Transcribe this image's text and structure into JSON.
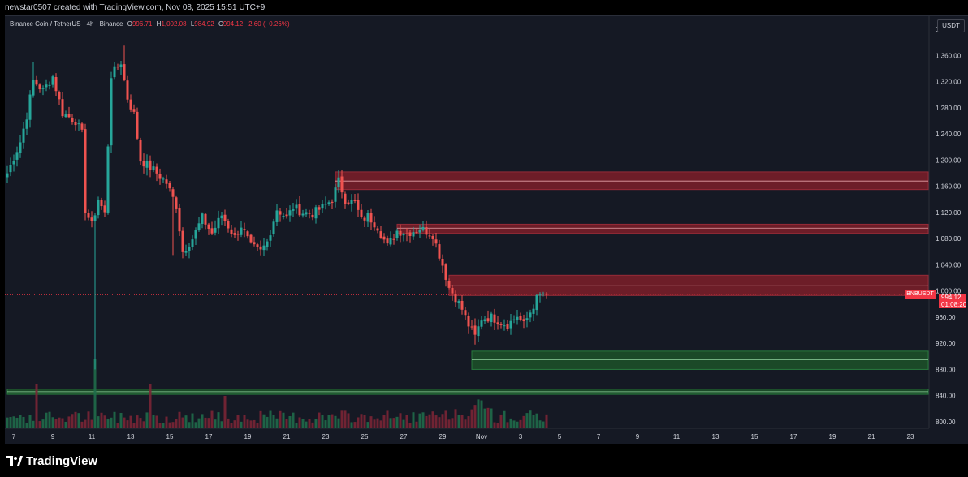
{
  "header": {
    "caption": "newstar0507 created with TradingView.com, Nov 08, 2025 15:51 UTC+9"
  },
  "legend": {
    "symbol": "Binance Coin / TetherUS · 4h · Binance",
    "o_label": "O",
    "o_value": "996.71",
    "h_label": "H",
    "h_value": "1,002.08",
    "l_label": "L",
    "l_value": "984.92",
    "c_label": "C",
    "c_value": "994.12",
    "change": "−2.60 (−0.26%)"
  },
  "currency_label": "USDT",
  "price_badge": {
    "symbol": "BNBUSDT",
    "price": "994.12",
    "countdown": "01:08:20"
  },
  "footer": {
    "brand": "TradingView"
  },
  "colors": {
    "background": "#151924",
    "up": "#26a69a",
    "down": "#ef5350",
    "resistance_zone": "#8b1f2a",
    "support_zone": "#1e5a2a",
    "text": "#d1d4dc"
  },
  "chart_data": {
    "type": "candlestick",
    "timeframe": "4h",
    "y_axis": {
      "min": 790,
      "max": 1420,
      "ticks": [
        {
          "value": 800,
          "label": "800.00"
        },
        {
          "value": 840,
          "label": "840.00"
        },
        {
          "value": 880,
          "label": "880.00"
        },
        {
          "value": 920,
          "label": "920.00"
        },
        {
          "value": 960,
          "label": "960.00"
        },
        {
          "value": 1000,
          "label": "1,000.00"
        },
        {
          "value": 1040,
          "label": "1,040.00"
        },
        {
          "value": 1080,
          "label": "1,080.00"
        },
        {
          "value": 1120,
          "label": "1,120.00"
        },
        {
          "value": 1160,
          "label": "1,160.00"
        },
        {
          "value": 1200,
          "label": "1,200.00"
        },
        {
          "value": 1240,
          "label": "1,240.00"
        },
        {
          "value": 1280,
          "label": "1,280.00"
        },
        {
          "value": 1320,
          "label": "1,320.00"
        },
        {
          "value": 1360,
          "label": "1,360.00"
        },
        {
          "value": 1400,
          "label": "1,400.00"
        }
      ]
    },
    "x_axis": {
      "labels": [
        "7",
        "9",
        "11",
        "13",
        "15",
        "17",
        "19",
        "21",
        "23",
        "25",
        "27",
        "29",
        "Nov",
        "3",
        "5",
        "7",
        "9",
        "11",
        "13",
        "15",
        "17",
        "19",
        "21",
        "23"
      ],
      "bars_per_label": 12,
      "first_label_bar": 2
    },
    "current_price": 994.12,
    "zones": [
      {
        "type": "resistance",
        "from": 1155,
        "to": 1182,
        "mid": 1168,
        "start_bar": 101
      },
      {
        "type": "resistance",
        "from": 1088,
        "to": 1102,
        "mid": 1096,
        "start_bar": 120
      },
      {
        "type": "resistance",
        "from": 993,
        "to": 1024,
        "mid": 1008,
        "start_bar": 136
      },
      {
        "type": "support",
        "from": 880,
        "to": 908,
        "mid": 895,
        "start_bar": 143
      },
      {
        "type": "support",
        "from": 842,
        "to": 850,
        "mid": 846,
        "start_bar": 0
      }
    ],
    "anchors": [
      {
        "bar": 0,
        "price": 1180
      },
      {
        "bar": 4,
        "price": 1228
      },
      {
        "bar": 6,
        "price": 1268
      },
      {
        "bar": 8,
        "price": 1322
      },
      {
        "bar": 11,
        "price": 1306
      },
      {
        "bar": 14,
        "price": 1328
      },
      {
        "bar": 17,
        "price": 1272
      },
      {
        "bar": 21,
        "price": 1260
      },
      {
        "bar": 23,
        "price": 1240
      },
      {
        "bar": 24,
        "price": 1125
      },
      {
        "bar": 26,
        "price": 1100
      },
      {
        "bar": 28,
        "price": 1140
      },
      {
        "bar": 30,
        "price": 1118
      },
      {
        "bar": 32,
        "price": 1330
      },
      {
        "bar": 35,
        "price": 1350
      },
      {
        "bar": 37,
        "price": 1295
      },
      {
        "bar": 39,
        "price": 1270
      },
      {
        "bar": 41,
        "price": 1200
      },
      {
        "bar": 45,
        "price": 1185
      },
      {
        "bar": 49,
        "price": 1165
      },
      {
        "bar": 52,
        "price": 1130
      },
      {
        "bar": 54,
        "price": 1060
      },
      {
        "bar": 57,
        "price": 1080
      },
      {
        "bar": 60,
        "price": 1112
      },
      {
        "bar": 63,
        "price": 1088
      },
      {
        "bar": 66,
        "price": 1116
      },
      {
        "bar": 70,
        "price": 1082
      },
      {
        "bar": 72,
        "price": 1100
      },
      {
        "bar": 75,
        "price": 1068
      },
      {
        "bar": 78,
        "price": 1060
      },
      {
        "bar": 80,
        "price": 1075
      },
      {
        "bar": 83,
        "price": 1125
      },
      {
        "bar": 86,
        "price": 1112
      },
      {
        "bar": 88,
        "price": 1128
      },
      {
        "bar": 91,
        "price": 1120
      },
      {
        "bar": 94,
        "price": 1118
      },
      {
        "bar": 97,
        "price": 1128
      },
      {
        "bar": 100,
        "price": 1140
      },
      {
        "bar": 102,
        "price": 1168
      },
      {
        "bar": 104,
        "price": 1140
      },
      {
        "bar": 107,
        "price": 1135
      },
      {
        "bar": 109,
        "price": 1108
      },
      {
        "bar": 111,
        "price": 1115
      },
      {
        "bar": 114,
        "price": 1098
      },
      {
        "bar": 117,
        "price": 1068
      },
      {
        "bar": 120,
        "price": 1092
      },
      {
        "bar": 123,
        "price": 1088
      },
      {
        "bar": 127,
        "price": 1096
      },
      {
        "bar": 131,
        "price": 1086
      },
      {
        "bar": 134,
        "price": 1040
      },
      {
        "bar": 136,
        "price": 1005
      },
      {
        "bar": 138,
        "price": 990
      },
      {
        "bar": 140,
        "price": 972
      },
      {
        "bar": 142,
        "price": 948
      },
      {
        "bar": 144,
        "price": 930
      },
      {
        "bar": 146,
        "price": 958
      },
      {
        "bar": 149,
        "price": 960
      },
      {
        "bar": 152,
        "price": 952
      },
      {
        "bar": 154,
        "price": 948
      },
      {
        "bar": 157,
        "price": 962
      },
      {
        "bar": 159,
        "price": 948
      },
      {
        "bar": 161,
        "price": 968
      },
      {
        "bar": 163,
        "price": 988
      },
      {
        "bar": 165,
        "price": 996
      },
      {
        "bar": 166,
        "price": 994.12
      }
    ],
    "spike_lows": [
      {
        "bar": 27,
        "low": 880
      },
      {
        "bar": 51,
        "low": 1055
      },
      {
        "bar": 144,
        "low": 918
      }
    ],
    "spike_highs": [
      {
        "bar": 36,
        "high": 1375
      },
      {
        "bar": 8,
        "high": 1350
      }
    ]
  }
}
